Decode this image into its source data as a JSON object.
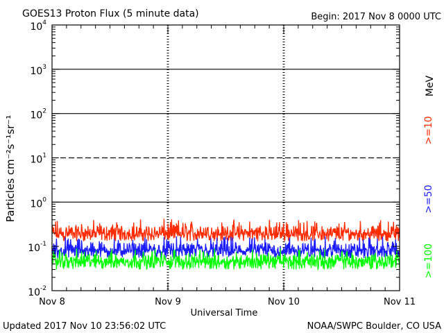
{
  "chart_data": {
    "type": "line",
    "title": "GOES13 Proton Flux (5 minute data)",
    "begin_label": "Begin: 2017 Nov 8 0000 UTC",
    "xlabel": "Universal Time",
    "ylabel": "Particles cm⁻²s⁻¹sr⁻¹",
    "y_scale": "log",
    "ylim": [
      0.01,
      10000
    ],
    "xlim": [
      0,
      3
    ],
    "x_ticks": [
      "Nov 8",
      "Nov 9",
      "Nov 10",
      "Nov 11"
    ],
    "y_ticks": [
      {
        "base": "10",
        "exp": "4",
        "value": 10000
      },
      {
        "base": "10",
        "exp": "3",
        "value": 1000
      },
      {
        "base": "10",
        "exp": "2",
        "value": 100
      },
      {
        "base": "10",
        "exp": "1",
        "value": 10
      },
      {
        "base": "10",
        "exp": "0",
        "value": 1
      },
      {
        "base": "10",
        "exp": "-1",
        "value": 0.1
      },
      {
        "base": "10",
        "exp": "-2",
        "value": 0.01
      }
    ],
    "threshold_lines": [
      {
        "value": 1000,
        "style": "solid"
      },
      {
        "value": 100,
        "style": "solid"
      },
      {
        "value": 10,
        "style": "dashed"
      },
      {
        "value": 1,
        "style": "solid"
      }
    ],
    "unit_label": "MeV",
    "series": [
      {
        "name": ">=10",
        "color": "#ff2a00",
        "base": 0.17,
        "range": [
          0.11,
          0.42
        ]
      },
      {
        "name": ">=50",
        "color": "#1a1aff",
        "base": 0.07,
        "range": [
          0.045,
          0.17
        ]
      },
      {
        "name": ">=100",
        "color": "#00ff00",
        "base": 0.04,
        "range": [
          0.025,
          0.09
        ]
      }
    ]
  },
  "footer": {
    "updated": "Updated 2017 Nov 10 23:56:02 UTC",
    "source": "NOAA/SWPC Boulder, CO USA"
  }
}
